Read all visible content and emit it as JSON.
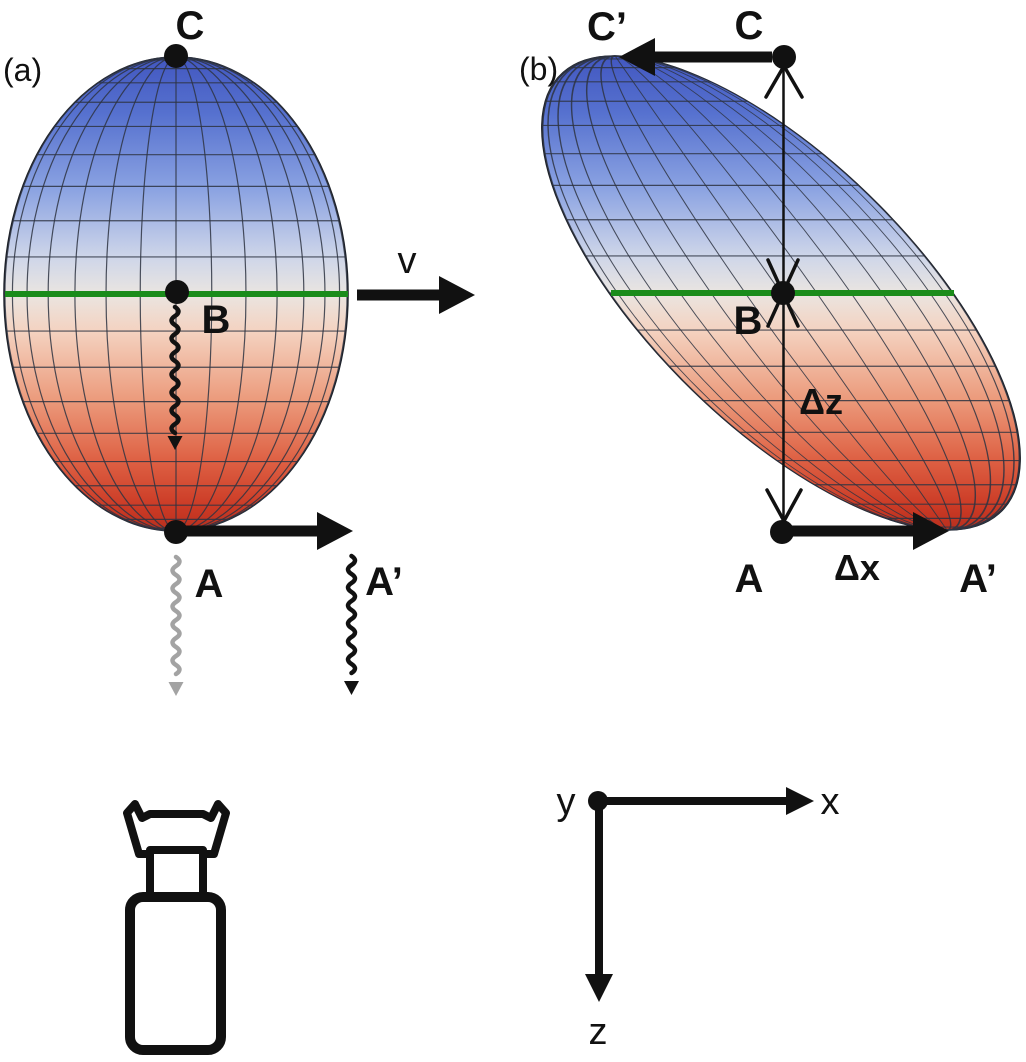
{
  "figure": {
    "panel_a": {
      "tag": "(a)",
      "point_top": "C",
      "point_center": "B",
      "point_bottom": "A",
      "point_bottom_shifted": "A’",
      "velocity_label": "v"
    },
    "panel_b": {
      "tag": "(b)",
      "point_top_shifted": "C’",
      "point_top": "C",
      "point_center": "B",
      "point_bottom": "A",
      "point_bottom_shifted": "A’",
      "delta_z_label": "Δz",
      "delta_x_label": "Δx"
    },
    "axes": {
      "x_label": "x",
      "y_label": "y",
      "z_label": "z"
    },
    "colors": {
      "green_line": "#1b8c1b",
      "mesh_line": "#2e3442",
      "silhouette_line": "#1d2129",
      "pole_blue": "#4257c0",
      "pole_red": "#b92f1e",
      "photon_black": "#111111",
      "photon_gray": "#a3a3a3",
      "ink": "#111111",
      "gradient_stops": [
        [
          "0%",
          "#4257c0"
        ],
        [
          "12%",
          "#5671cf"
        ],
        [
          "28%",
          "#8ba3e2"
        ],
        [
          "42%",
          "#cdd5e9"
        ],
        [
          "50%",
          "#eae5e1"
        ],
        [
          "58%",
          "#f4d2c0"
        ],
        [
          "72%",
          "#ec9c7d"
        ],
        [
          "85%",
          "#de6144"
        ],
        [
          "95%",
          "#cb3a25"
        ],
        [
          "100%",
          "#b92f1e"
        ]
      ]
    }
  }
}
